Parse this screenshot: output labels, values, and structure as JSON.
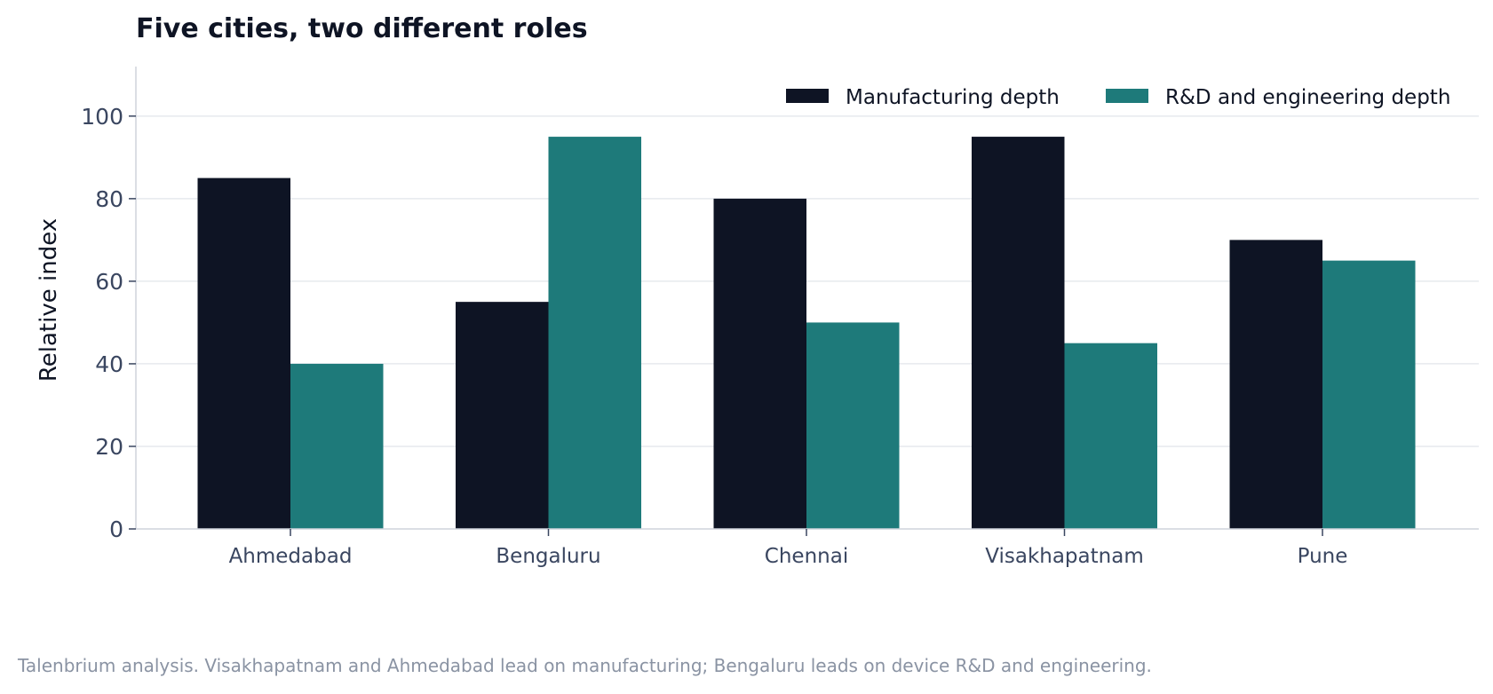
{
  "chart_data": {
    "type": "bar",
    "title": "Five cities, two different roles",
    "xlabel": "",
    "ylabel": "Relative index",
    "ylim": [
      0,
      112
    ],
    "yticks": [
      0,
      20,
      40,
      60,
      80,
      100
    ],
    "grid": true,
    "legend_position": "top-right",
    "categories": [
      "Ahmedabad",
      "Bengaluru",
      "Chennai",
      "Visakhapatnam",
      "Pune"
    ],
    "series": [
      {
        "name": "Manufacturing depth",
        "color": "#0e1424",
        "values": [
          85,
          55,
          80,
          95,
          70
        ]
      },
      {
        "name": "R&D and engineering depth",
        "color": "#1e7a7a",
        "values": [
          40,
          95,
          50,
          45,
          65
        ]
      }
    ],
    "source": "Talenbrium analysis. Visakhapatnam and Ahmedabad lead on manufacturing; Bengaluru leads on device R&D and engineering."
  }
}
